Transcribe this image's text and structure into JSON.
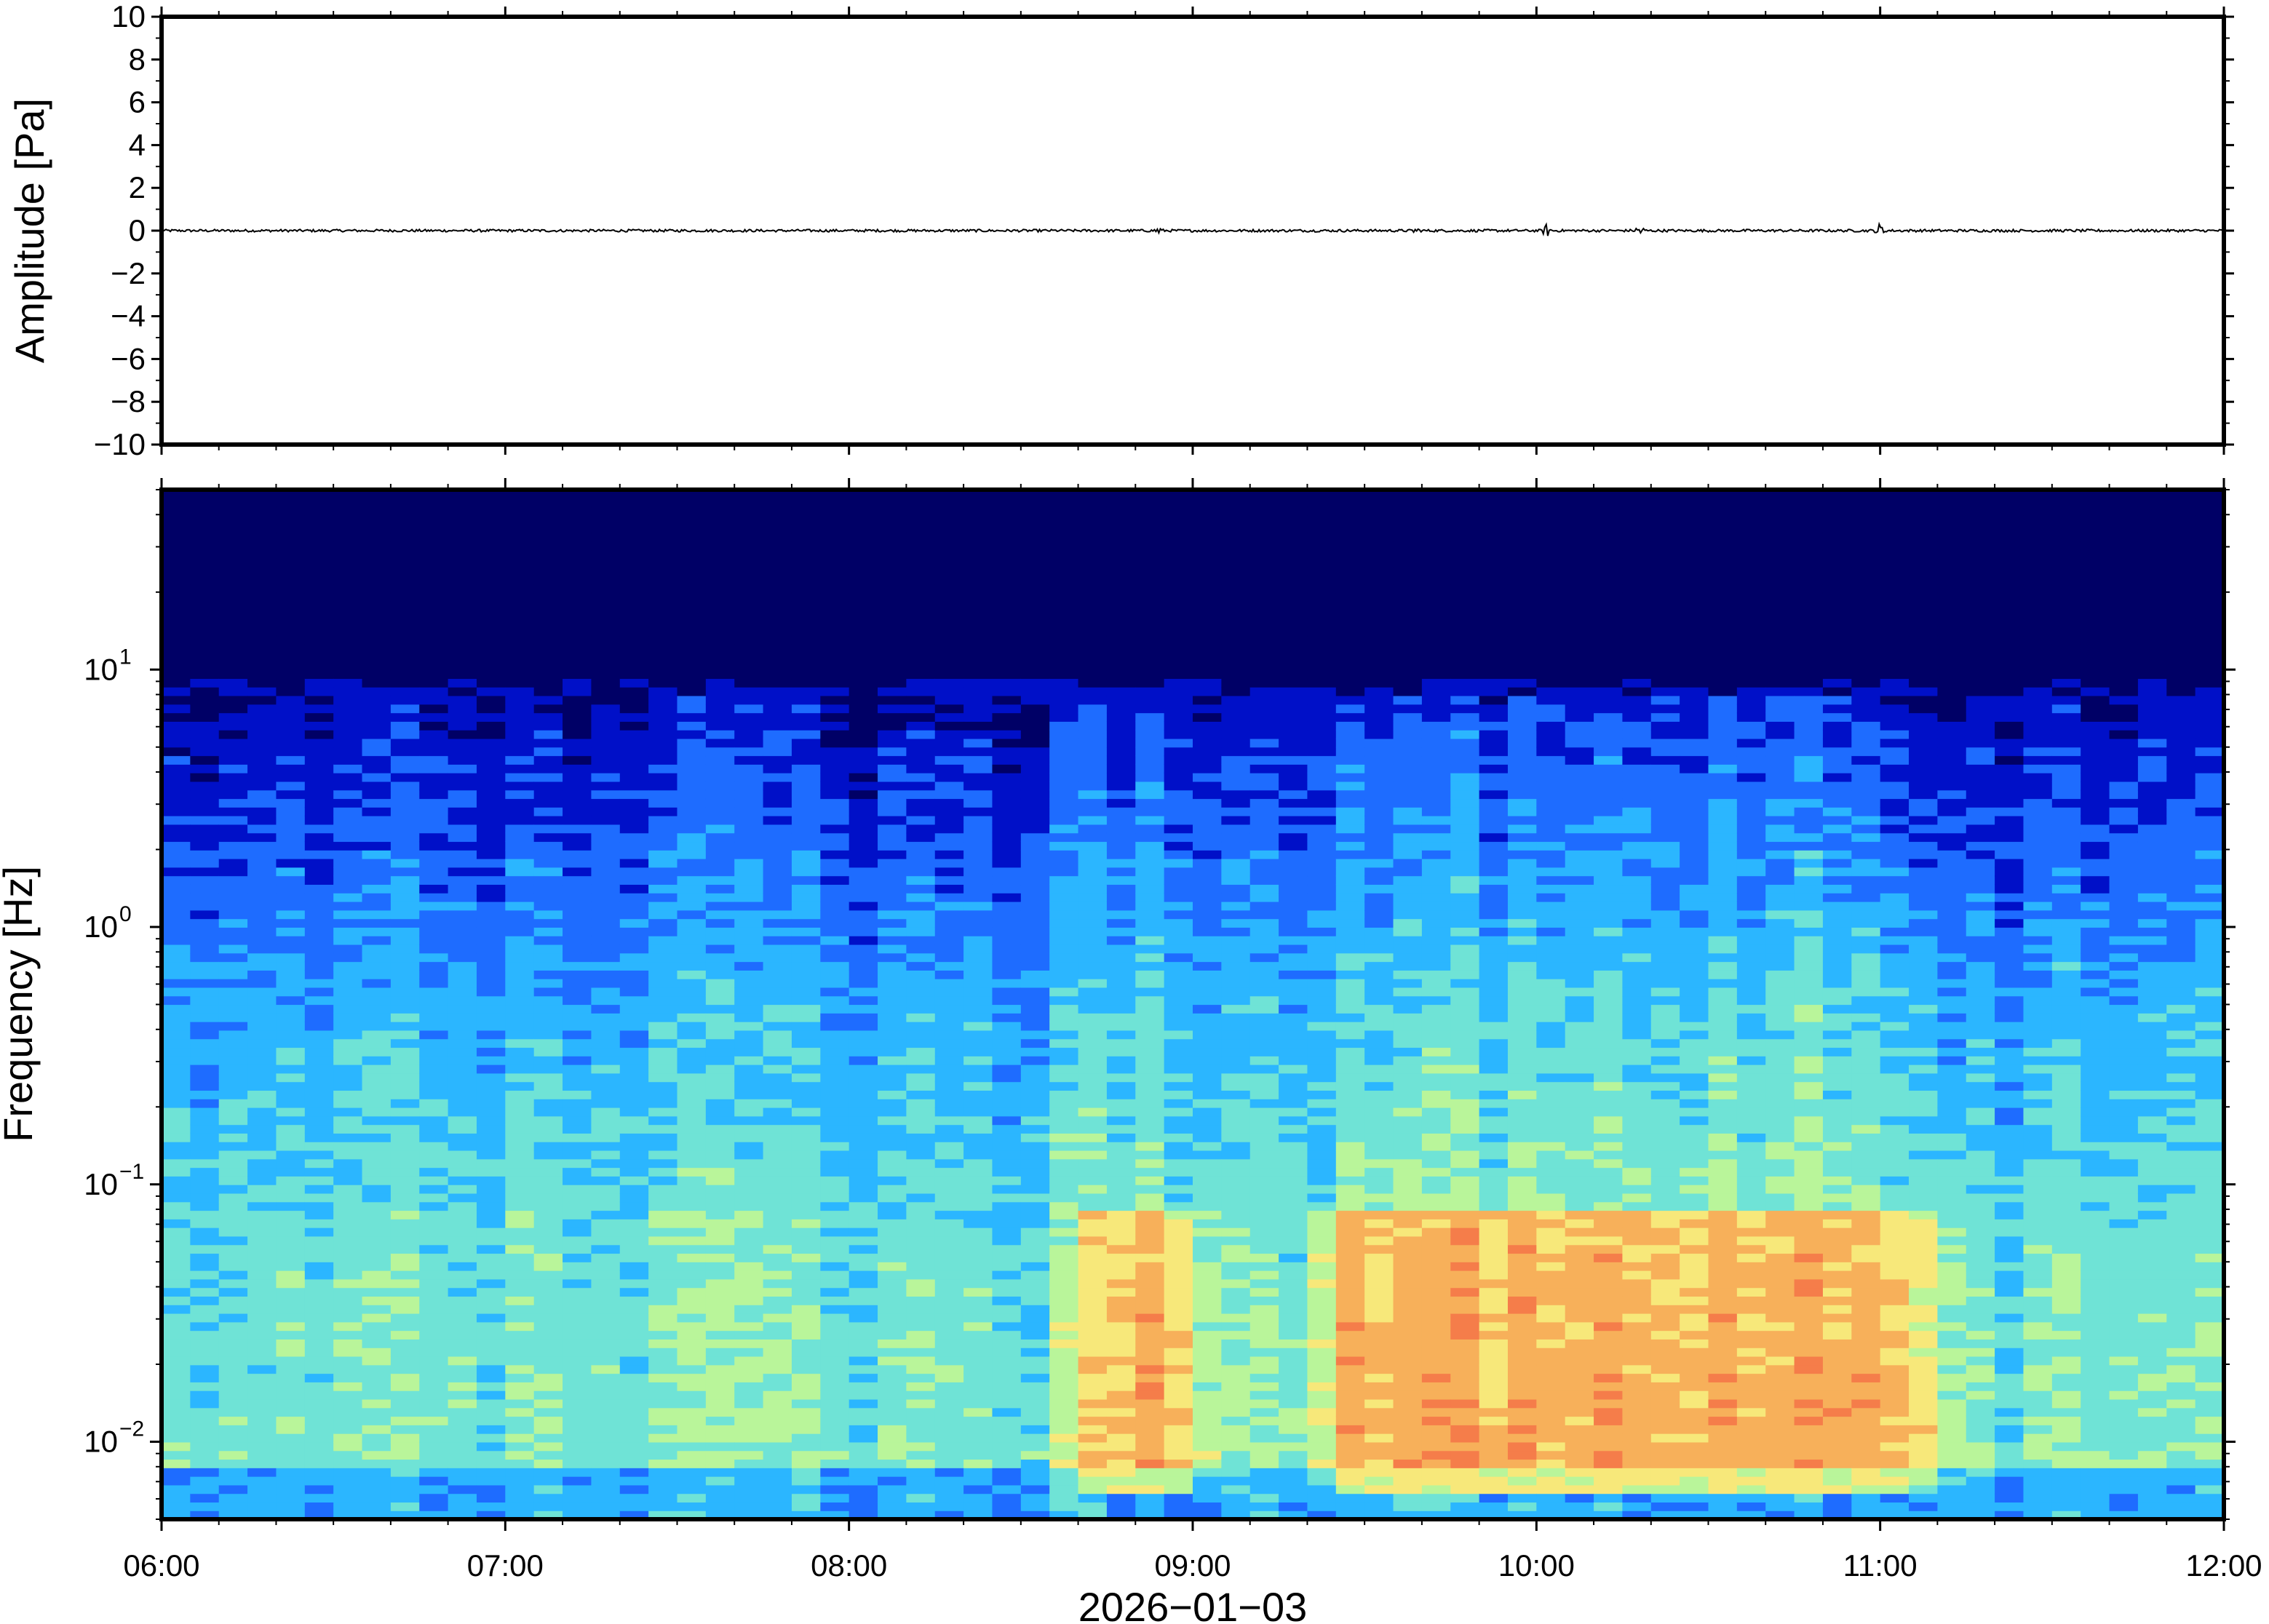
{
  "chart_data": [
    {
      "type": "line",
      "panel": "waveform",
      "ylabel": "Amplitude [Pa]",
      "ylim": [
        -10,
        10
      ],
      "y_ticks": [
        10,
        8,
        6,
        4,
        2,
        0,
        -2,
        -4,
        -6,
        -8,
        -10
      ],
      "y_tick_labels": [
        "10",
        "8",
        "6",
        "4",
        "2",
        "0",
        "−2",
        "−4",
        "−6",
        "−8",
        "−10"
      ],
      "x_range": [
        "06:00",
        "12:00"
      ],
      "baseline": 0,
      "series": [
        {
          "values_note_free": true,
          "values": [
            0
          ]
        }
      ],
      "bursts_hours": [
        8.9,
        9.65,
        10.03,
        10.3,
        11.0
      ],
      "burst_amplitudes": [
        0.25,
        0.2,
        0.35,
        0.35,
        0.4
      ],
      "line_color": "#000000"
    },
    {
      "type": "heatmap",
      "panel": "spectrogram",
      "ylabel": "Frequency [Hz]",
      "yscale": "log",
      "ylim": [
        0.005,
        50
      ],
      "y_ticks": [
        0.01,
        0.1,
        1,
        10
      ],
      "y_tick_labels": [
        {
          "base": "10",
          "exp": "−2"
        },
        {
          "base": "10",
          "exp": "−1"
        },
        {
          "base": "10",
          "exp": "0"
        },
        {
          "base": "10",
          "exp": "1"
        }
      ],
      "x_ticks": [
        "06:00",
        "07:00",
        "08:00",
        "09:00",
        "10:00",
        "11:00",
        "12:00"
      ],
      "xlabel": "2026−01−03",
      "colormap": [
        "#000066",
        "#0010c8",
        "#1e6cff",
        "#2bb6ff",
        "#6fe3d6",
        "#b9f59a",
        "#f7e87a",
        "#f7b05a",
        "#f57d4a"
      ],
      "energetic_periods_hours": [
        [
          8.75,
          8.95
        ],
        [
          9.45,
          10.5
        ],
        [
          10.55,
          11.1
        ]
      ]
    }
  ]
}
